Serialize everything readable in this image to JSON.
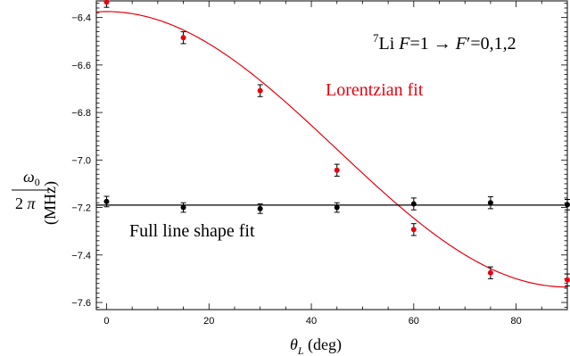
{
  "chart_data": {
    "type": "scatter",
    "title": "",
    "xlabel": "θL (deg)",
    "ylabel": "ω0 / 2π (MHz)",
    "xlim": [
      -2,
      90
    ],
    "ylim": [
      -7.63,
      -6.33
    ],
    "x_ticks": [
      0,
      20,
      40,
      60,
      80
    ],
    "y_ticks": [
      -7.6,
      -7.4,
      -7.2,
      -7.0,
      -6.8,
      -6.6,
      -6.4
    ],
    "x_tick_labels": [
      "0",
      "20",
      "40",
      "60",
      "80"
    ],
    "y_tick_labels": [
      "−7.6",
      "−7.4",
      "−7.2",
      "−7.0",
      "−6.8",
      "−6.6",
      "−6.4"
    ],
    "grid": false,
    "annotations": {
      "transition": {
        "sup": "7",
        "element": "Li ",
        "F": "F",
        "eq1": "=1 → ",
        "Fp": "F",
        "prime": "′",
        "eq2": "=0,1,2"
      },
      "lorentzian_label": "Lorentzian fit",
      "full_line_label": "Full line shape fit"
    },
    "series": [
      {
        "label": "Lorentzian fit",
        "color": "#e8000f",
        "points": [
          {
            "x": 0,
            "y": -6.335,
            "err": 0.022
          },
          {
            "x": 15,
            "y": -6.485,
            "err": 0.025
          },
          {
            "x": 30,
            "y": -6.708,
            "err": 0.025
          },
          {
            "x": 45,
            "y": -7.043,
            "err": 0.025
          },
          {
            "x": 60,
            "y": -7.293,
            "err": 0.025
          },
          {
            "x": 75,
            "y": -7.475,
            "err": 0.025
          },
          {
            "x": 90,
            "y": -7.505,
            "err": 0.025
          }
        ],
        "fit": {
          "form": "A + B*cos(2*theta)",
          "A": -6.955,
          "B": 0.58
        }
      },
      {
        "label": "Full line shape fit",
        "color": "#000000",
        "points": [
          {
            "x": 0,
            "y": -7.175,
            "err": 0.022
          },
          {
            "x": 15,
            "y": -7.2,
            "err": 0.02
          },
          {
            "x": 30,
            "y": -7.205,
            "err": 0.02
          },
          {
            "x": 45,
            "y": -7.2,
            "err": 0.02
          },
          {
            "x": 60,
            "y": -7.185,
            "err": 0.025
          },
          {
            "x": 75,
            "y": -7.18,
            "err": 0.025
          },
          {
            "x": 90,
            "y": -7.188,
            "err": 0.022
          }
        ],
        "fit": {
          "form": "constant",
          "value": -7.19
        }
      }
    ]
  }
}
